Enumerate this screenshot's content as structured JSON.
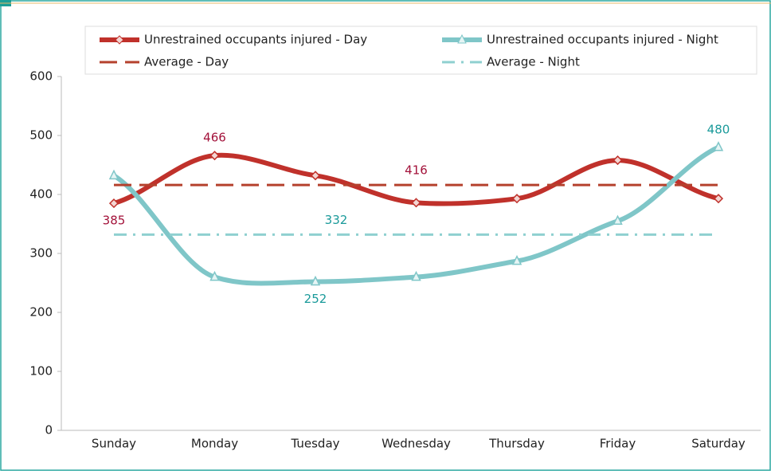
{
  "chart_data": {
    "type": "line",
    "categories": [
      "Sunday",
      "Monday",
      "Tuesday",
      "Wednesday",
      "Thursday",
      "Friday",
      "Saturday"
    ],
    "ylim": [
      0,
      600
    ],
    "yticks": [
      0,
      100,
      200,
      300,
      400,
      500,
      600
    ],
    "legend": "top",
    "series": [
      {
        "name": "Unrestrained occupants injured - Day",
        "color": "#c0312b",
        "label_color": "#a3123a",
        "style": "solid",
        "width": 6,
        "marker": "diamond",
        "values": [
          385,
          466,
          432,
          386,
          393,
          458,
          393
        ],
        "labeled": [
          0,
          1
        ]
      },
      {
        "name": "Unrestrained occupants injured - Night",
        "color": "#7fc6c8",
        "label_color": "#1a9a9a",
        "style": "solid",
        "width": 6,
        "marker": "triangle",
        "values": [
          432,
          260,
          252,
          260,
          287,
          355,
          480
        ],
        "labeled": [
          2,
          6
        ]
      },
      {
        "name": "Average - Day",
        "color": "#b5412d",
        "label_color": "#a3123a",
        "style": "dash",
        "width": 3,
        "marker": "none",
        "values": [
          416,
          416,
          416,
          416,
          416,
          416,
          416
        ],
        "labeled": [
          3
        ]
      },
      {
        "name": "Average - Night",
        "color": "#8fd0d0",
        "label_color": "#1a9a9a",
        "style": "dashdot",
        "width": 3,
        "marker": "none",
        "values": [
          332,
          332,
          332,
          332,
          332,
          332,
          332
        ],
        "labeled": [
          2
        ]
      }
    ]
  }
}
